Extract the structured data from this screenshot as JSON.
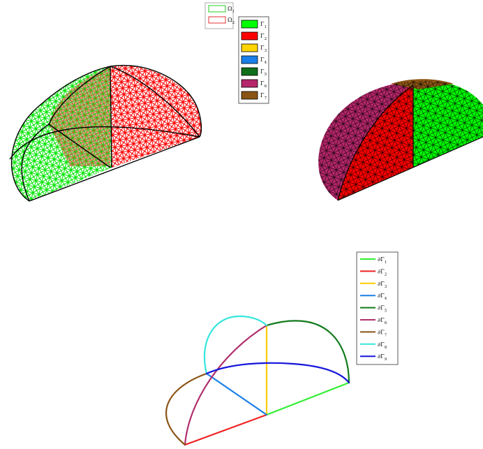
{
  "figure": {
    "panels": [
      {
        "id": "partitioned_mesh",
        "legend": [
          {
            "label": "Ω",
            "sub": "1",
            "color": "#22d022"
          },
          {
            "label": "Ω",
            "sub": "2",
            "color": "#e53030"
          }
        ],
        "domain_colors": {
          "omega1": "#00ee00",
          "omega2": "#ff0000",
          "edges": "#000000"
        }
      },
      {
        "id": "boundary_faces",
        "legend": [
          {
            "label": "Γ",
            "sub": "1",
            "color": "#00ff00"
          },
          {
            "label": "Γ",
            "sub": "2",
            "color": "#ff0000"
          },
          {
            "label": "Γ",
            "sub": "3",
            "color": "#ffd400"
          },
          {
            "label": "Γ",
            "sub": "4",
            "color": "#1a7fe8"
          },
          {
            "label": "Γ",
            "sub": "5",
            "color": "#0f6e1a"
          },
          {
            "label": "Γ",
            "sub": "6",
            "color": "#b5266a"
          },
          {
            "label": "Γ",
            "sub": "7",
            "color": "#8a5414"
          }
        ]
      },
      {
        "id": "boundary_curves",
        "legend": [
          {
            "label": "∂Γ",
            "sub": "1",
            "color": "#33ee33"
          },
          {
            "label": "∂Γ",
            "sub": "2",
            "color": "#ee2222"
          },
          {
            "label": "∂Γ",
            "sub": "3",
            "color": "#ffcc00"
          },
          {
            "label": "∂Γ",
            "sub": "4",
            "color": "#1a7fe8"
          },
          {
            "label": "∂Γ",
            "sub": "5",
            "color": "#117a1b"
          },
          {
            "label": "∂Γ",
            "sub": "6",
            "color": "#b0306e"
          },
          {
            "label": "∂Γ",
            "sub": "7",
            "color": "#8a5414"
          },
          {
            "label": "∂Γ",
            "sub": "8",
            "color": "#33e6dd"
          },
          {
            "label": "∂Γ",
            "sub": "9",
            "color": "#1515dd"
          }
        ]
      }
    ]
  }
}
